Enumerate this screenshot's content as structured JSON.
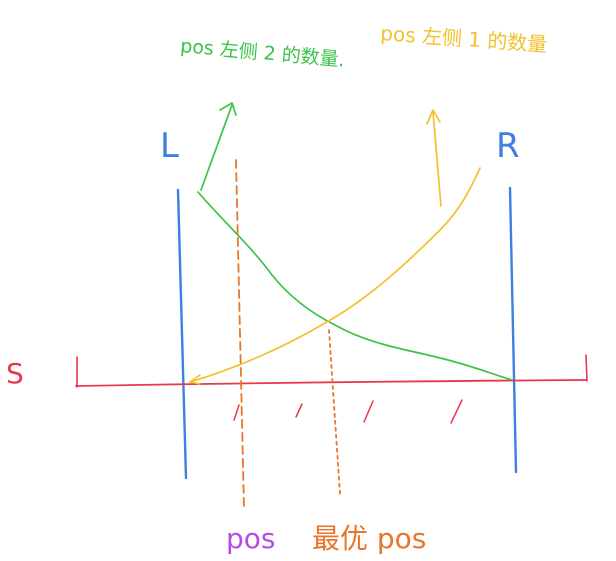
{
  "labels": {
    "s": "S",
    "l": "L",
    "r": "R",
    "pos": "pos",
    "best_pos": "最优 pos",
    "left_two_count": "pos 左侧 2 的数量.",
    "left_one_count": "pos 左侧 1 的数量"
  },
  "colors": {
    "blue": "#3f7fe0",
    "red": "#e8384a",
    "green": "#3cc24a",
    "yellow": "#f2c12e",
    "orange": "#e8762a",
    "purple": "#b74be6"
  }
}
